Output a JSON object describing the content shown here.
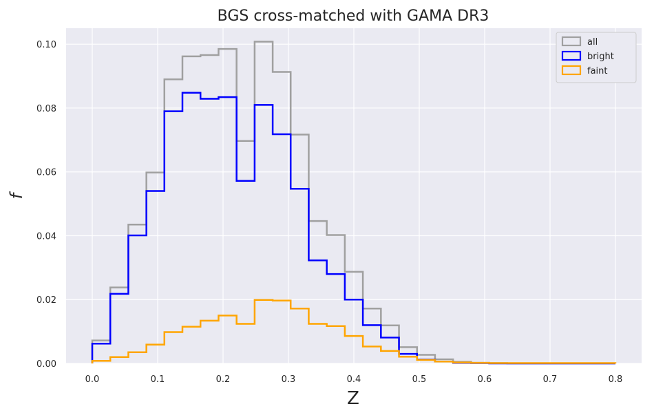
{
  "chart_data": {
    "type": "histogram-step",
    "title": "BGS cross-matched with GAMA DR3",
    "xlabel": "Z",
    "ylabel": "f",
    "xlim": [
      -0.04,
      0.84
    ],
    "ylim": [
      0,
      0.105
    ],
    "grid": true,
    "legend_position": "top-right",
    "bin_edges": [
      0.0,
      0.0276,
      0.0552,
      0.0828,
      0.1103,
      0.1379,
      0.1655,
      0.1931,
      0.2207,
      0.2483,
      0.2759,
      0.3034,
      0.331,
      0.3586,
      0.3862,
      0.4138,
      0.4414,
      0.469,
      0.4966,
      0.5241,
      0.5517,
      0.5793,
      0.6069,
      0.6345,
      0.6621,
      0.6897,
      0.7172,
      0.7448,
      0.7724,
      0.8
    ],
    "series": [
      {
        "name": "all",
        "color": "#a0a0a0",
        "values": [
          0.0072,
          0.0238,
          0.0435,
          0.0598,
          0.089,
          0.0962,
          0.0966,
          0.0985,
          0.0697,
          0.1008,
          0.0913,
          0.0717,
          0.0446,
          0.0402,
          0.0287,
          0.0172,
          0.0119,
          0.0051,
          0.0027,
          0.0013,
          0.0005,
          0.0002,
          0.0001,
          0.0,
          0.0,
          0.0,
          0.0,
          0.0,
          0.0
        ]
      },
      {
        "name": "bright",
        "color": "#0000ff",
        "values": [
          0.0062,
          0.0218,
          0.0401,
          0.054,
          0.079,
          0.0848,
          0.0829,
          0.0834,
          0.0572,
          0.081,
          0.0718,
          0.0547,
          0.0323,
          0.028,
          0.02,
          0.012,
          0.0081,
          0.003,
          0.0012,
          0.0006,
          0.0002,
          0.0001,
          0.0,
          0.0,
          0.0,
          0.0,
          0.0,
          0.0,
          0.0
        ]
      },
      {
        "name": "faint",
        "color": "#ffa500",
        "values": [
          0.0008,
          0.002,
          0.0035,
          0.0059,
          0.0098,
          0.0115,
          0.0134,
          0.015,
          0.0124,
          0.0199,
          0.0197,
          0.0172,
          0.0124,
          0.0117,
          0.0086,
          0.0053,
          0.0039,
          0.0021,
          0.0011,
          0.0006,
          0.0003,
          0.0002,
          0.0001,
          0.0001,
          0.0001,
          0.0001,
          0.0001,
          0.0001,
          0.0001
        ]
      }
    ],
    "xticks": [
      0.0,
      0.1,
      0.2,
      0.3,
      0.4,
      0.5,
      0.6,
      0.7,
      0.8
    ],
    "xtick_labels": [
      "0.0",
      "0.1",
      "0.2",
      "0.3",
      "0.4",
      "0.5",
      "0.6",
      "0.7",
      "0.8"
    ],
    "yticks": [
      0.0,
      0.02,
      0.04,
      0.06,
      0.08,
      0.1
    ],
    "ytick_labels": [
      "0.00",
      "0.02",
      "0.04",
      "0.06",
      "0.08",
      "0.10"
    ],
    "colors": {
      "plot_background": "#eaeaf2",
      "grid": "#ffffff",
      "legend_background": "#eaeaf2",
      "legend_border": "#cccccc"
    }
  }
}
